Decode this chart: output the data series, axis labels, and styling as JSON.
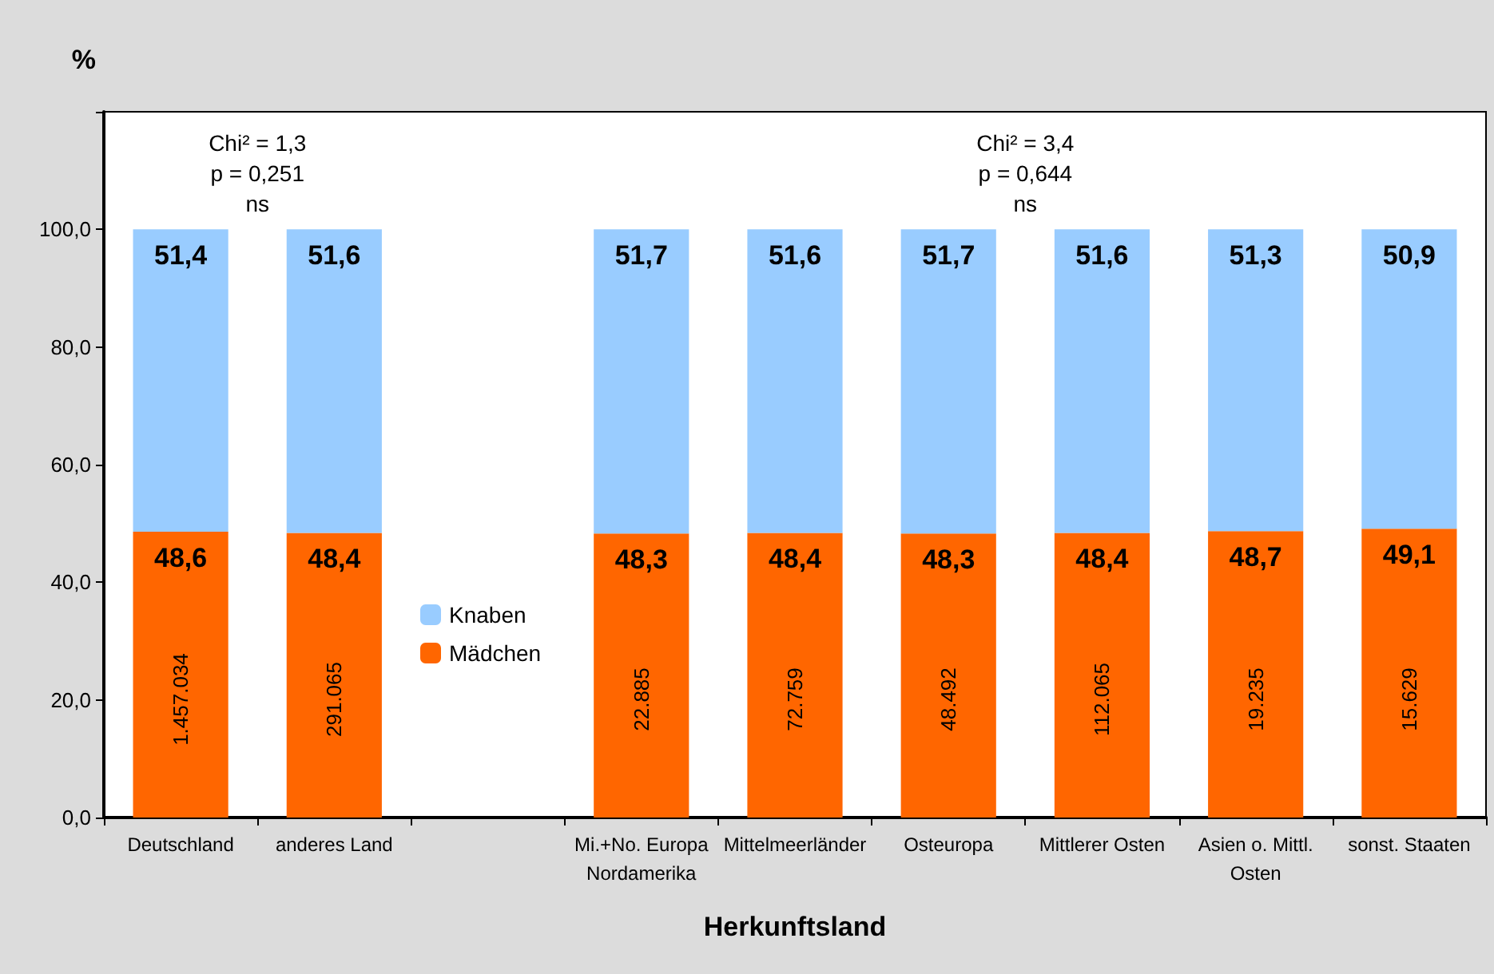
{
  "chart_data": {
    "type": "bar",
    "stacked": true,
    "xlabel": "Herkunftsland",
    "ylabel": "%",
    "categories": [
      "Deutschland",
      "anderes Land",
      null,
      "Mi.+No. Europa\nNordamerika",
      "Mittelmeerländer",
      "Osteuropa",
      "Mittlerer Osten",
      "Asien o. Mittl.\nOsten",
      "sonst. Staaten"
    ],
    "series": [
      {
        "name": "Mädchen",
        "color": "#ff6600",
        "values": [
          48.6,
          48.4,
          null,
          48.3,
          48.4,
          48.3,
          48.4,
          48.7,
          49.1
        ],
        "value_labels": [
          "48,6",
          "48,4",
          null,
          "48,3",
          "48,4",
          "48,3",
          "48,4",
          "48,7",
          "49,1"
        ]
      },
      {
        "name": "Knaben",
        "color": "#99ccff",
        "values": [
          51.4,
          51.6,
          null,
          51.7,
          51.6,
          51.7,
          51.6,
          51.3,
          50.9
        ],
        "value_labels": [
          "51,4",
          "51,6",
          null,
          "51,7",
          "51,6",
          "51,7",
          "51,6",
          "51,3",
          "50,9"
        ]
      }
    ],
    "ylim": [
      0,
      120
    ],
    "yticks": [
      {
        "value": 0,
        "label": "0,0"
      },
      {
        "value": 20,
        "label": "20,0"
      },
      {
        "value": 40,
        "label": "40,0"
      },
      {
        "value": 60,
        "label": "60,0"
      },
      {
        "value": 80,
        "label": "80,0"
      },
      {
        "value": 100,
        "label": "100,0"
      },
      {
        "value": 120,
        "label": null
      }
    ],
    "grid": false,
    "legend": "center left",
    "annotations": [
      "Chi² = 1,3\np = 0,251\nns",
      "Chi² = 3,4\np = 0,644\nns",
      "1.457.034",
      "291.065",
      "22.885",
      "72.759",
      "48.492",
      "112.065",
      "19.235",
      "15.629"
    ]
  }
}
